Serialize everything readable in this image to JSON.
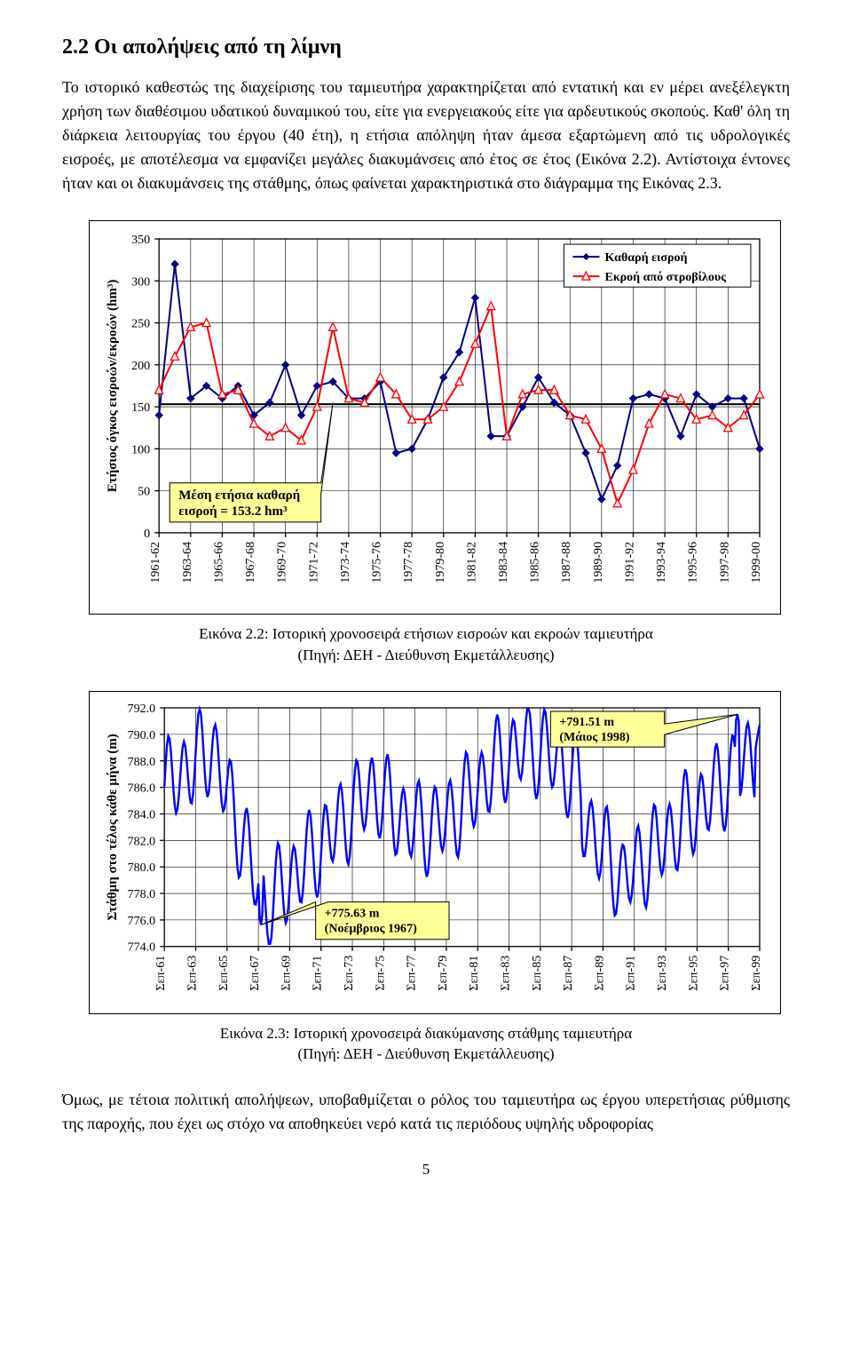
{
  "heading": "2.2   Οι απολήψεις από τη λίμνη",
  "para1": "Το ιστορικό καθεστώς της διαχείρισης του ταμιευτήρα χαρακτηρίζεται από εντατική και εν μέρει ανεξέλεγκτη χρήση των διαθέσιμου υδατικού δυναμικού του, είτε για ενεργειακούς είτε για αρδευτικούς σκοπούς. Καθ' όλη τη διάρκεια λειτουργίας του έργου (40 έτη), η ετήσια απόληψη ήταν άμεσα εξαρτώμενη από τις υδρολογικές εισροές, με αποτέλεσμα να εμφανίζει μεγάλες διακυμάνσεις από έτος σε έτος (Εικόνα 2.2). Αντίστοιχα έντονες ήταν και οι διακυμάνσεις της στάθμης, όπως φαίνεται χαρακτηριστικά στο διάγραμμα της Εικόνας 2.3.",
  "chart1": {
    "type": "line",
    "ylabel": "Ετήσιος όγκος εισροών/εκροών (hm³)",
    "ylim": [
      0,
      350
    ],
    "ytick_step": 50,
    "label_fontsize": 15,
    "tick_fontsize": 14,
    "grid_color": "#000000",
    "background_color": "#ffffff",
    "categories": [
      "1961-62",
      "1963-64",
      "1965-66",
      "1967-68",
      "1969-70",
      "1971-72",
      "1973-74",
      "1975-76",
      "1977-78",
      "1979-80",
      "1981-82",
      "1983-84",
      "1985-86",
      "1987-88",
      "1989-90",
      "1991-92",
      "1993-94",
      "1995-96",
      "1997-98",
      "1999-00"
    ],
    "series": [
      {
        "name": "Καθαρή εισροή",
        "color": "#000080",
        "marker": "diamond",
        "marker_color": "#000080",
        "line_width": 2,
        "values": [
          140,
          320,
          160,
          175,
          160,
          175,
          140,
          155,
          200,
          140,
          175,
          180,
          160,
          160,
          180,
          95,
          100,
          135,
          185,
          215,
          280,
          115,
          115,
          150,
          185,
          155,
          140,
          95,
          40,
          80,
          160,
          165,
          160,
          115,
          165,
          150,
          160,
          160,
          100
        ]
      },
      {
        "name": "Εκροή από στροβίλους",
        "color": "#ff0000",
        "marker": "triangle",
        "marker_color": "#ffffff",
        "marker_stroke": "#ff0000",
        "line_width": 2,
        "values": [
          170,
          210,
          245,
          250,
          165,
          170,
          130,
          115,
          125,
          110,
          150,
          245,
          160,
          155,
          185,
          165,
          135,
          135,
          150,
          180,
          225,
          270,
          115,
          165,
          170,
          170,
          140,
          135,
          100,
          35,
          75,
          130,
          165,
          160,
          135,
          140,
          125,
          140,
          165
        ]
      }
    ],
    "callout": {
      "text1": "Μέση ετήσια καθαρή",
      "text2": "εισροή = 153.2 hm³",
      "fill": "#ffff99",
      "font_weight": "bold",
      "font_size": 15,
      "point_to_x_index": 11,
      "point_to_y": 155
    },
    "mean_line": {
      "value": 153.2,
      "color": "#000000",
      "width": 2
    },
    "legend_pos": "top-right"
  },
  "caption1": "Εικόνα 2.2: Ιστορική χρονοσειρά ετήσιων εισροών και εκροών ταμιευτήρα\n(Πηγή: ΔΕΗ - Διεύθυνση Εκμετάλλευσης)",
  "chart2": {
    "type": "line",
    "ylabel": "Στάθμη στο τέλος κάθε μήνα (m)",
    "ylim": [
      774.0,
      792.0
    ],
    "ytick_step": 2.0,
    "label_fontsize": 15,
    "tick_fontsize": 14,
    "tick_decimals": 1,
    "grid_color": "#000000",
    "background_color": "#ffffff",
    "categories": [
      "Σεπ-61",
      "Σεπ-63",
      "Σεπ-65",
      "Σεπ-67",
      "Σεπ-69",
      "Σεπ-71",
      "Σεπ-73",
      "Σεπ-75",
      "Σεπ-77",
      "Σεπ-79",
      "Σεπ-81",
      "Σεπ-83",
      "Σεπ-85",
      "Σεπ-87",
      "Σεπ-89",
      "Σεπ-91",
      "Σεπ-93",
      "Σεπ-95",
      "Σεπ-97",
      "Σεπ-99"
    ],
    "series_color": "#0000ff",
    "series_line_width": 2.4,
    "monthly_values_per_year": 24,
    "callout_low": {
      "text1": "+775.63 m",
      "text2": "(Νοέμβριος 1967)",
      "fill": "#ffff99",
      "font_weight": "bold",
      "font_size": 14
    },
    "callout_high": {
      "text1": "+791.51 m",
      "text2": "(Μάιος 1998)",
      "fill": "#ffff99",
      "font_weight": "bold",
      "font_size": 14
    }
  },
  "caption2": "Εικόνα 2.3: Ιστορική χρονοσειρά διακύμανσης στάθμης ταμιευτήρα\n(Πηγή: ΔΕΗ - Διεύθυνση Εκμετάλλευσης)",
  "para2": "Όμως, με τέτοια πολιτική απολήψεων, υποβαθμίζεται ο ρόλος του ταμιευτήρα ως έργου υπερετήσιας ρύθμισης της παροχής, που έχει ως στόχο να αποθηκεύει νερό κατά τις περιόδους υψηλής υδροφορίας",
  "page_number": "5"
}
